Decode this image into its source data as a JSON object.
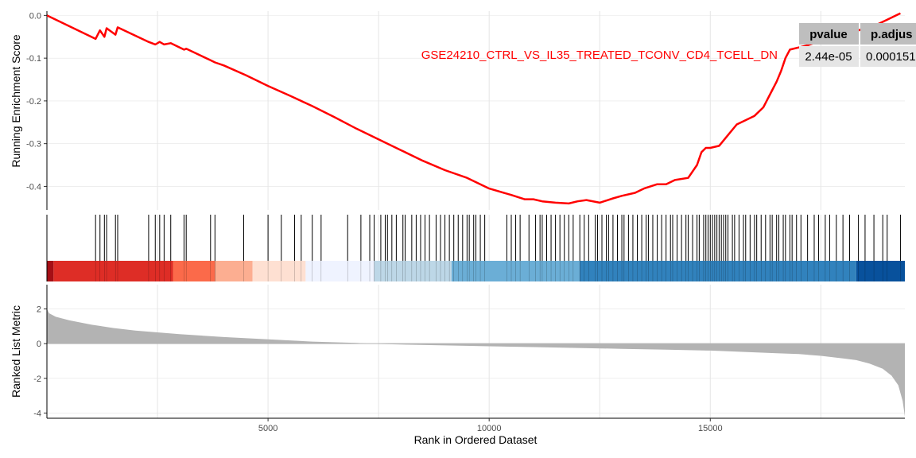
{
  "chart_data": {
    "type": "line",
    "subtype": "gsea-enrichment-plot",
    "xlabel": "Rank in Ordered Dataset",
    "xlim": [
      0,
      19400
    ],
    "x_ticks": [
      "5000",
      "10000",
      "15000"
    ],
    "x_tick_values": [
      5000,
      10000,
      15000
    ],
    "grid": true,
    "panels": [
      {
        "name": "running-enrichment-score",
        "ylabel": "Running Enrichment Score",
        "ylim": [
          -0.455,
          0.01
        ],
        "y_ticks": [
          "0.0",
          "-0.1",
          "-0.2",
          "-0.3",
          "-0.4"
        ],
        "y_tick_values": [
          0.0,
          -0.1,
          -0.2,
          -0.3,
          -0.4
        ],
        "series": [
          {
            "name": "GSE24210_CTRL_VS_IL35_TREATED_TCONV_CD4_TCELL_DN",
            "color": "#ff0000",
            "x": [
              0,
              1100,
              1200,
              1300,
              1350,
              1550,
              1600,
              2300,
              2450,
              2550,
              2650,
              2800,
              3100,
              3150,
              3700,
              3800,
              4000,
              4500,
              5000,
              5500,
              6000,
              6500,
              7000,
              7500,
              8000,
              8500,
              9000,
              9500,
              10000,
              10500,
              10800,
              11000,
              11200,
              11500,
              11800,
              12000,
              12200,
              12500,
              12800,
              13000,
              13300,
              13500,
              13800,
              14000,
              14200,
              14500,
              14700,
              14800,
              14900,
              15000,
              15200,
              15400,
              15600,
              15800,
              16000,
              16200,
              16400,
              16500,
              16600,
              16700,
              16800,
              17000,
              17200,
              17500,
              17700,
              17900,
              18200,
              18500,
              18800,
              19000,
              19200,
              19300
            ],
            "y": [
              0.0,
              -0.055,
              -0.035,
              -0.05,
              -0.03,
              -0.045,
              -0.028,
              -0.062,
              -0.068,
              -0.062,
              -0.068,
              -0.065,
              -0.08,
              -0.078,
              -0.105,
              -0.11,
              -0.117,
              -0.14,
              -0.165,
              -0.188,
              -0.212,
              -0.238,
              -0.265,
              -0.29,
              -0.315,
              -0.34,
              -0.362,
              -0.38,
              -0.405,
              -0.42,
              -0.43,
              -0.43,
              -0.435,
              -0.438,
              -0.44,
              -0.435,
              -0.432,
              -0.438,
              -0.428,
              -0.422,
              -0.415,
              -0.405,
              -0.395,
              -0.395,
              -0.385,
              -0.38,
              -0.35,
              -0.32,
              -0.31,
              -0.31,
              -0.305,
              -0.28,
              -0.255,
              -0.245,
              -0.235,
              -0.215,
              -0.175,
              -0.155,
              -0.13,
              -0.1,
              -0.08,
              -0.075,
              -0.07,
              -0.06,
              -0.055,
              -0.05,
              -0.04,
              -0.03,
              -0.02,
              -0.01,
              0.0,
              0.005
            ]
          }
        ]
      },
      {
        "name": "gene-set-hits",
        "hits": [
          1100,
          1200,
          1300,
          1350,
          1550,
          1600,
          2300,
          2450,
          2550,
          2650,
          2800,
          3100,
          3150,
          3700,
          3800,
          4450,
          5000,
          5300,
          5600,
          5750,
          6000,
          6200,
          6800,
          7100,
          7300,
          7400,
          7550,
          7650,
          7700,
          7800,
          7900,
          8050,
          8100,
          8250,
          8350,
          8450,
          8550,
          8650,
          8800,
          8900,
          9000,
          9100,
          9200,
          9300,
          9400,
          9500,
          9550,
          9650,
          9700,
          9800,
          9900,
          10400,
          10500,
          10600,
          10700,
          10900,
          11050,
          11150,
          11200,
          11300,
          11400,
          11500,
          11600,
          11700,
          11800,
          11900,
          12050,
          12150,
          12250,
          12400,
          12450,
          12550,
          12650,
          12700,
          12800,
          12900,
          13000,
          13050,
          13150,
          13250,
          13350,
          13450,
          13550,
          13600,
          13700,
          13800,
          13900,
          14000,
          14100,
          14150,
          14250,
          14350,
          14450,
          14500,
          14600,
          14700,
          14750,
          14850,
          14900,
          14950,
          15000,
          15050,
          15100,
          15150,
          15200,
          15250,
          15300,
          15350,
          15400,
          15500,
          15550,
          15650,
          15750,
          15800,
          15900,
          16000,
          16050,
          16150,
          16250,
          16350,
          16400,
          16500,
          16550,
          16650,
          16700,
          16800,
          16850,
          16950,
          17050,
          17200,
          17350,
          17450,
          17600,
          17700,
          17850,
          18000,
          18150,
          18350,
          18500,
          18700,
          18900,
          19000,
          19300
        ]
      },
      {
        "name": "rank-color-bar",
        "segments": [
          {
            "from": 0,
            "to": 150,
            "color": "#a50f15"
          },
          {
            "from": 150,
            "to": 2850,
            "color": "#de2d26"
          },
          {
            "from": 2850,
            "to": 3800,
            "color": "#fb6a4a"
          },
          {
            "from": 3800,
            "to": 4650,
            "color": "#fcae91"
          },
          {
            "from": 4650,
            "to": 5850,
            "color": "#fee0d2"
          },
          {
            "from": 5850,
            "to": 7400,
            "color": "#eff3ff"
          },
          {
            "from": 7400,
            "to": 9150,
            "color": "#bdd7e7"
          },
          {
            "from": 9150,
            "to": 12050,
            "color": "#6baed6"
          },
          {
            "from": 12050,
            "to": 18300,
            "color": "#3182bd"
          },
          {
            "from": 18300,
            "to": 19400,
            "color": "#08519c"
          }
        ]
      },
      {
        "name": "ranked-list-metric",
        "ylabel": "Ranked List Metric",
        "ylim": [
          -4.3,
          3.4
        ],
        "y_ticks": [
          "2",
          "0",
          "-2",
          "-4"
        ],
        "y_tick_values": [
          2,
          0,
          -2,
          -4
        ],
        "fill_color": "#b3b3b3",
        "x": [
          0,
          50,
          200,
          500,
          1000,
          1500,
          2000,
          3000,
          4000,
          5000,
          6000,
          7000,
          7300,
          8000,
          9000,
          10000,
          11000,
          12000,
          13000,
          14000,
          15000,
          15500,
          16000,
          16500,
          17000,
          17500,
          18000,
          18300,
          18600,
          18900,
          19100,
          19250,
          19350,
          19400
        ],
        "y": [
          2.0,
          1.75,
          1.55,
          1.35,
          1.1,
          0.9,
          0.75,
          0.55,
          0.38,
          0.25,
          0.12,
          0.04,
          0.0,
          -0.05,
          -0.1,
          -0.15,
          -0.2,
          -0.25,
          -0.3,
          -0.35,
          -0.4,
          -0.45,
          -0.5,
          -0.55,
          -0.6,
          -0.7,
          -0.85,
          -0.95,
          -1.15,
          -1.45,
          -1.85,
          -2.4,
          -3.3,
          -4.2
        ]
      }
    ],
    "table": {
      "columns": [
        "pvalue",
        "p.adjus"
      ],
      "rows": [
        [
          "2.44e-05",
          "0.000151"
        ]
      ]
    },
    "annotation": "GSE24210_CTRL_VS_IL35_TREATED_TCONV_CD4_TCELL_DN"
  }
}
